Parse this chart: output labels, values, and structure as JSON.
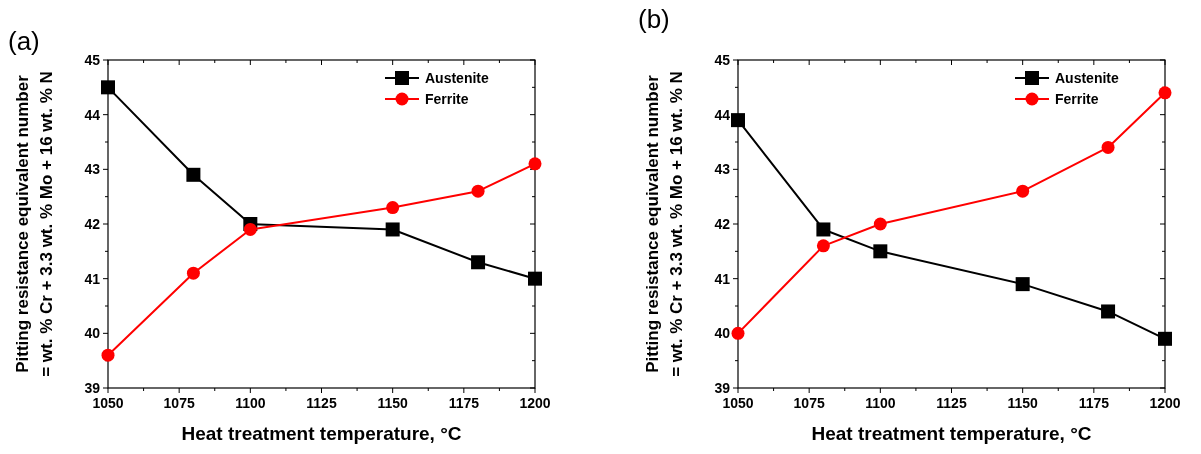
{
  "chart_data": [
    {
      "type": "line",
      "annotations": [
        "(a)"
      ],
      "xlabel": "Heat treatment temperature, °C",
      "ylabel": "Pitting resistance equivalent number\n= wt. % Cr + 3.3 wt. % Mo + 16 wt. % N",
      "x": [
        1050,
        1080,
        1100,
        1150,
        1180,
        1200
      ],
      "xlim": [
        1050,
        1200
      ],
      "xticks": [
        1050,
        1075,
        1100,
        1125,
        1150,
        1175,
        1200
      ],
      "ylim": [
        39,
        45
      ],
      "yticks": [
        39,
        40,
        41,
        42,
        43,
        44,
        45
      ],
      "legend": "top right",
      "grid": false,
      "series": [
        {
          "name": "Austenite",
          "color": "#000000",
          "marker": "square",
          "values": [
            44.5,
            42.9,
            42.0,
            41.9,
            41.3,
            41.0
          ]
        },
        {
          "name": "Ferrite",
          "color": "#ff0000",
          "marker": "circle",
          "values": [
            39.6,
            41.1,
            41.9,
            42.3,
            42.6,
            43.1
          ]
        }
      ]
    },
    {
      "type": "line",
      "annotations": [
        "(b)"
      ],
      "xlabel": "Heat treatment temperature, °C",
      "ylabel": "Pitting resistance equivalent number\n= wt. % Cr + 3.3 wt. % Mo + 16 wt. % N",
      "x": [
        1050,
        1080,
        1100,
        1150,
        1180,
        1200
      ],
      "xlim": [
        1050,
        1200
      ],
      "xticks": [
        1050,
        1075,
        1100,
        1125,
        1150,
        1175,
        1200
      ],
      "ylim": [
        39,
        45
      ],
      "yticks": [
        39,
        40,
        41,
        42,
        43,
        44,
        45
      ],
      "legend": "top right",
      "grid": false,
      "series": [
        {
          "name": "Austenite",
          "color": "#000000",
          "marker": "square",
          "values": [
            43.9,
            41.9,
            41.5,
            40.9,
            40.4,
            39.9
          ]
        },
        {
          "name": "Ferrite",
          "color": "#ff0000",
          "marker": "circle",
          "values": [
            40.0,
            41.6,
            42.0,
            42.6,
            43.4,
            44.4
          ]
        }
      ]
    }
  ]
}
